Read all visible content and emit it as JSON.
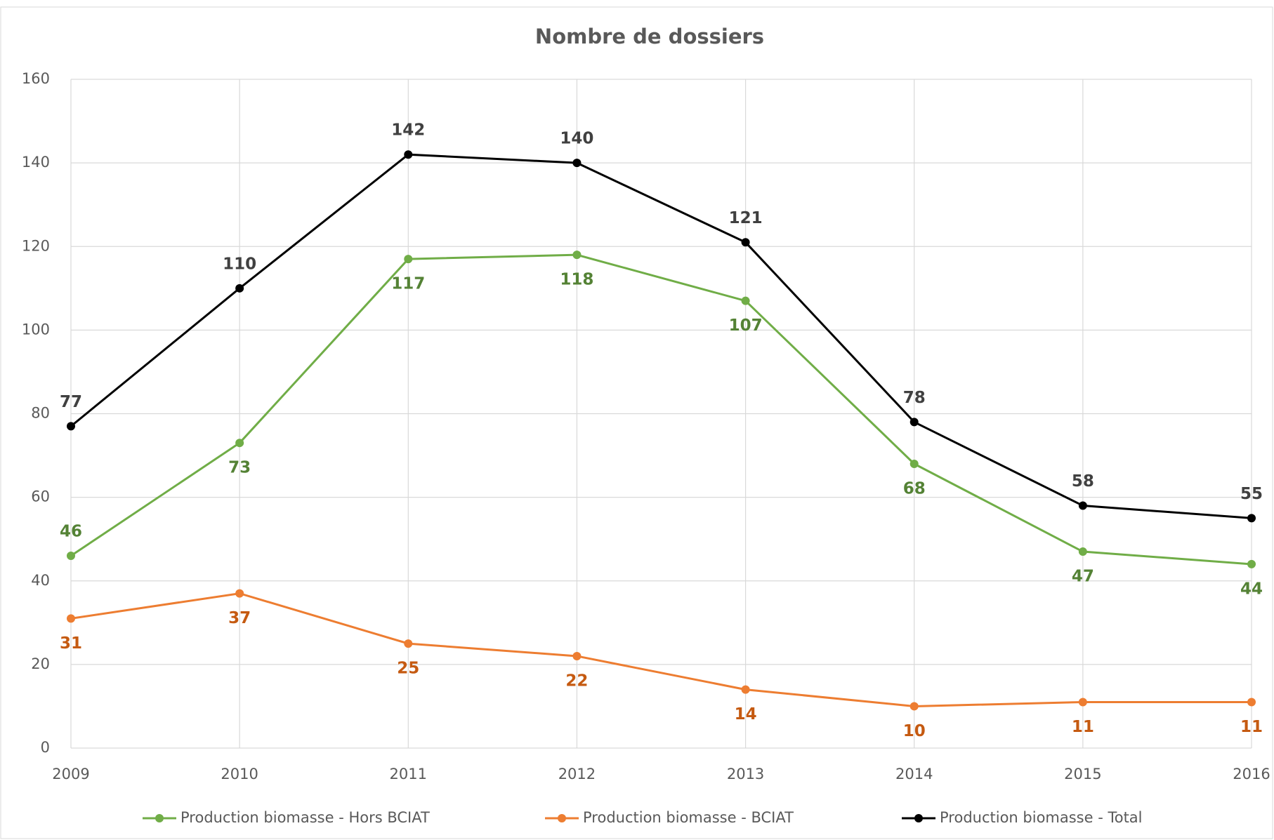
{
  "chart_data": {
    "type": "line",
    "title": "Nombre de dossiers",
    "x": [
      2009,
      2010,
      2011,
      2012,
      2013,
      2014,
      2015,
      2016
    ],
    "xlim": [
      2009,
      2016
    ],
    "xticks": [
      2009,
      2010,
      2011,
      2012,
      2013,
      2014,
      2015,
      2016
    ],
    "ylim": [
      0,
      160
    ],
    "yticks": [
      0,
      20,
      40,
      60,
      80,
      100,
      120,
      140,
      160
    ],
    "grid": true,
    "legend": "bottom",
    "series": [
      {
        "name": "Production biomasse - Hors BCIAT",
        "color": "#70ad47",
        "label_color": "#548235",
        "values": [
          46,
          73,
          117,
          118,
          107,
          68,
          47,
          44
        ]
      },
      {
        "name": "Production biomasse - BCIAT",
        "color": "#ed7d31",
        "label_color": "#c55a11",
        "values": [
          31,
          37,
          25,
          22,
          14,
          10,
          11,
          11
        ]
      },
      {
        "name": "Production biomasse - Total",
        "color": "#000000",
        "label_color": "#404040",
        "values": [
          77,
          110,
          142,
          140,
          121,
          78,
          58,
          55
        ]
      }
    ]
  }
}
